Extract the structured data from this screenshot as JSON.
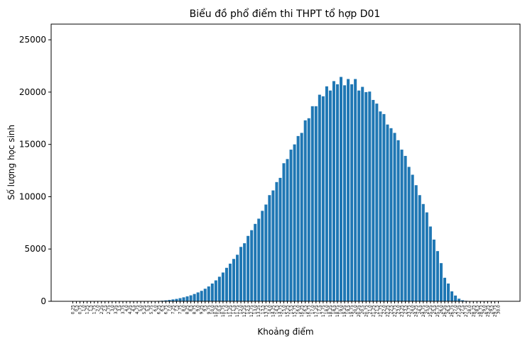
{
  "chart_data": {
    "type": "bar",
    "title": "Biểu đồ phổ điểm thi THPT tổ hợp D01",
    "xlabel": "Khoảng điểm",
    "ylabel": "Số lượng học sinh",
    "ylim": [
      0,
      26500
    ],
    "yticks": [
      0,
      5000,
      10000,
      15000,
      20000,
      25000
    ],
    "bar_color": "#1f77b4",
    "grid": false,
    "categories": [
      "0.25",
      "0.5",
      "0.75",
      "1.0",
      "1.25",
      "1.5",
      "1.75",
      "2.0",
      "2.25",
      "2.5",
      "2.75",
      "3.0",
      "3.25",
      "3.5",
      "3.75",
      "4.0",
      "4.25",
      "4.5",
      "4.75",
      "5.0",
      "5.25",
      "5.5",
      "5.75",
      "6.0",
      "6.25",
      "6.5",
      "6.75",
      "7.0",
      "7.25",
      "7.5",
      "7.75",
      "8.0",
      "8.25",
      "8.5",
      "8.75",
      "9.0",
      "9.25",
      "9.5",
      "9.75",
      "10.0",
      "10.25",
      "10.5",
      "10.75",
      "11.0",
      "11.25",
      "11.5",
      "11.75",
      "12.0",
      "12.25",
      "12.5",
      "12.75",
      "13.0",
      "13.25",
      "13.5",
      "13.75",
      "14.0",
      "14.25",
      "14.5",
      "14.75",
      "15.0",
      "15.25",
      "15.5",
      "15.75",
      "16.0",
      "16.25",
      "16.5",
      "16.75",
      "17.0",
      "17.25",
      "17.5",
      "17.75",
      "18.0",
      "18.25",
      "18.5",
      "18.75",
      "19.0",
      "19.25",
      "19.5",
      "19.75",
      "20.0",
      "20.25",
      "20.5",
      "20.75",
      "21.0",
      "21.25",
      "21.5",
      "21.75",
      "22.0",
      "22.25",
      "22.5",
      "22.75",
      "23.0",
      "23.25",
      "23.5",
      "23.75",
      "24.0",
      "24.25",
      "24.5",
      "24.75",
      "25.0",
      "25.25",
      "25.5",
      "25.75",
      "26.0",
      "26.25",
      "26.5",
      "26.75",
      "27.0",
      "27.25",
      "27.5",
      "27.75",
      "28.0",
      "28.25",
      "28.5",
      "28.75",
      "29.0",
      "29.25",
      "29.5",
      "29.75",
      "30.0"
    ],
    "values": [
      0,
      0,
      0,
      0,
      0,
      0,
      0,
      0,
      0,
      0,
      0,
      0,
      0,
      0,
      0,
      0,
      0,
      0,
      0,
      0,
      2,
      5,
      10,
      20,
      40,
      60,
      90,
      130,
      180,
      230,
      300,
      380,
      470,
      570,
      700,
      850,
      1000,
      1200,
      1420,
      1700,
      2000,
      2350,
      2750,
      3200,
      3600,
      4050,
      4450,
      5200,
      5550,
      6250,
      6800,
      7400,
      7900,
      8650,
      9250,
      10150,
      10600,
      11400,
      11800,
      13200,
      13600,
      14500,
      15000,
      15800,
      16100,
      17300,
      17500,
      18650,
      18650,
      19750,
      19600,
      20550,
      20150,
      21050,
      20750,
      21450,
      20650,
      21250,
      20750,
      21250,
      20150,
      20500,
      20000,
      20050,
      19250,
      18900,
      18150,
      17900,
      16900,
      16550,
      16100,
      15400,
      14500,
      13900,
      12850,
      12100,
      11100,
      10150,
      9300,
      8500,
      7150,
      5900,
      4800,
      3650,
      2250,
      1700,
      950,
      550,
      250,
      100,
      50,
      20,
      5,
      2,
      0,
      0,
      0,
      0,
      0,
      0
    ]
  }
}
